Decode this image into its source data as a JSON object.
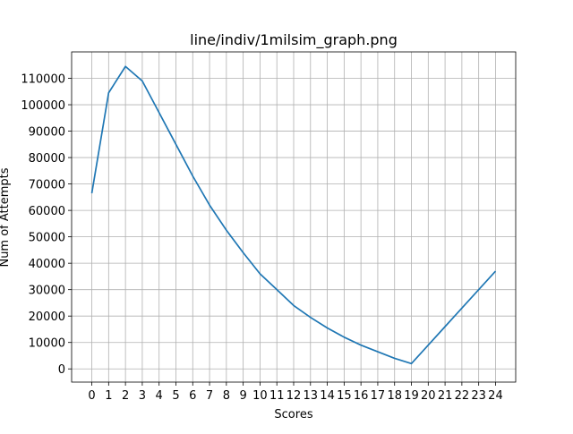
{
  "chart_data": {
    "type": "line",
    "title": "line/indiv/1milsim_graph.png",
    "xlabel": "Scores",
    "ylabel": "Num of Attempts",
    "x": [
      0,
      1,
      2,
      3,
      4,
      5,
      6,
      7,
      8,
      9,
      10,
      11,
      12,
      13,
      14,
      15,
      16,
      17,
      18,
      19,
      20,
      21,
      22,
      23,
      24
    ],
    "series": [
      {
        "values": [
          66500,
          104500,
          114500,
          109000,
          97000,
          85000,
          73000,
          62000,
          52500,
          44000,
          36000,
          30000,
          24000,
          19500,
          15500,
          12000,
          9000,
          6500,
          4000,
          2000,
          9000,
          16000,
          23000,
          30000,
          37000
        ]
      }
    ],
    "xlim": [
      -1.2,
      25.2
    ],
    "ylim": [
      -5000,
      120000
    ],
    "xticks": [
      0,
      1,
      2,
      3,
      4,
      5,
      6,
      7,
      8,
      9,
      10,
      11,
      12,
      13,
      14,
      15,
      16,
      17,
      18,
      19,
      20,
      21,
      22,
      23,
      24
    ],
    "yticks": [
      0,
      10000,
      20000,
      30000,
      40000,
      50000,
      60000,
      70000,
      80000,
      90000,
      100000,
      110000
    ],
    "grid": true,
    "line_color": "#1f77b4"
  }
}
